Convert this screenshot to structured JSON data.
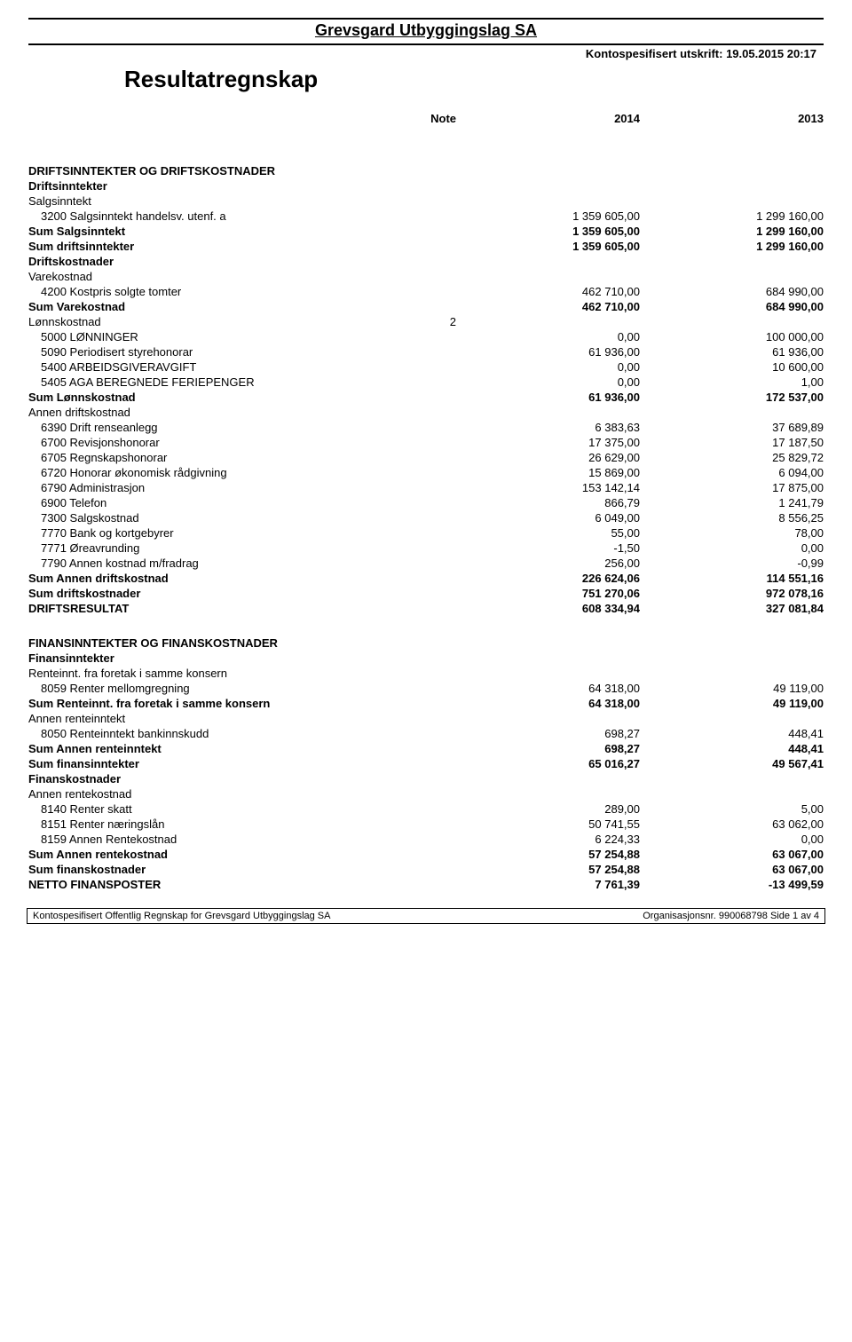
{
  "header": {
    "company": "Grevsgard Utbyggingslag SA",
    "printInfo": "Kontospesifisert utskrift: 19.05.2015 20:17",
    "reportTitle": "Resultatregnskap",
    "colNote": "Note",
    "col2014": "2014",
    "col2013": "2013"
  },
  "sections": [
    {
      "type": "big-spacer"
    },
    {
      "type": "heading",
      "label": "DRIFTSINNTEKTER OG DRIFTSKOSTNADER"
    },
    {
      "type": "subheading",
      "label": "Driftsinntekter"
    },
    {
      "type": "plain",
      "label": "Salgsinntekt"
    },
    {
      "type": "row",
      "label": "3200 Salgsinntekt handelsv. utenf. a",
      "indent": 1,
      "v2014": "1 359 605,00",
      "v2013": "1 299 160,00"
    },
    {
      "type": "bold",
      "label": "Sum Salgsinntekt",
      "v2014": "1 359 605,00",
      "v2013": "1 299 160,00"
    },
    {
      "type": "bold",
      "label": "Sum driftsinntekter",
      "v2014": "1 359 605,00",
      "v2013": "1 299 160,00"
    },
    {
      "type": "subheading",
      "label": "Driftskostnader"
    },
    {
      "type": "plain",
      "label": "Varekostnad"
    },
    {
      "type": "row",
      "label": "4200 Kostpris solgte tomter",
      "indent": 1,
      "v2014": "462 710,00",
      "v2013": "684 990,00"
    },
    {
      "type": "bold",
      "label": "Sum Varekostnad",
      "v2014": "462 710,00",
      "v2013": "684 990,00"
    },
    {
      "type": "plain",
      "label": "Lønnskostnad",
      "note": "2"
    },
    {
      "type": "row",
      "label": "5000 LØNNINGER",
      "indent": 1,
      "v2014": "0,00",
      "v2013": "100 000,00"
    },
    {
      "type": "row",
      "label": "5090 Periodisert styrehonorar",
      "indent": 1,
      "v2014": "61 936,00",
      "v2013": "61 936,00"
    },
    {
      "type": "row",
      "label": "5400 ARBEIDSGIVERAVGIFT",
      "indent": 1,
      "v2014": "0,00",
      "v2013": "10 600,00"
    },
    {
      "type": "row",
      "label": "5405 AGA BEREGNEDE FERIEPENGER",
      "indent": 1,
      "v2014": "0,00",
      "v2013": "1,00"
    },
    {
      "type": "bold",
      "label": "Sum Lønnskostnad",
      "v2014": "61 936,00",
      "v2013": "172 537,00"
    },
    {
      "type": "plain",
      "label": "Annen driftskostnad"
    },
    {
      "type": "row",
      "label": "6390 Drift renseanlegg",
      "indent": 1,
      "v2014": "6 383,63",
      "v2013": "37 689,89"
    },
    {
      "type": "row",
      "label": "6700 Revisjonshonorar",
      "indent": 1,
      "v2014": "17 375,00",
      "v2013": "17 187,50"
    },
    {
      "type": "row",
      "label": "6705 Regnskapshonorar",
      "indent": 1,
      "v2014": "26 629,00",
      "v2013": "25 829,72"
    },
    {
      "type": "row",
      "label": "6720 Honorar økonomisk rådgivning",
      "indent": 1,
      "v2014": "15 869,00",
      "v2013": "6 094,00"
    },
    {
      "type": "row",
      "label": "6790 Administrasjon",
      "indent": 1,
      "v2014": "153 142,14",
      "v2013": "17 875,00"
    },
    {
      "type": "row",
      "label": "6900 Telefon",
      "indent": 1,
      "v2014": "866,79",
      "v2013": "1 241,79"
    },
    {
      "type": "row",
      "label": "7300 Salgskostnad",
      "indent": 1,
      "v2014": "6 049,00",
      "v2013": "8 556,25"
    },
    {
      "type": "row",
      "label": "7770 Bank og kortgebyrer",
      "indent": 1,
      "v2014": "55,00",
      "v2013": "78,00"
    },
    {
      "type": "row",
      "label": "7771 Øreavrunding",
      "indent": 1,
      "v2014": "-1,50",
      "v2013": "0,00"
    },
    {
      "type": "row",
      "label": "7790 Annen kostnad m/fradrag",
      "indent": 1,
      "v2014": "256,00",
      "v2013": "-0,99"
    },
    {
      "type": "bold",
      "label": "Sum Annen driftskostnad",
      "v2014": "226 624,06",
      "v2013": "114 551,16"
    },
    {
      "type": "bold",
      "label": "Sum driftskostnader",
      "v2014": "751 270,06",
      "v2013": "972 078,16"
    },
    {
      "type": "bold",
      "label": "DRIFTSRESULTAT",
      "v2014": "608 334,94",
      "v2013": "327 081,84"
    },
    {
      "type": "spacer"
    },
    {
      "type": "heading",
      "label": "FINANSINNTEKTER OG FINANSKOSTNADER"
    },
    {
      "type": "subheading",
      "label": "Finansinntekter"
    },
    {
      "type": "plain",
      "label": "Renteinnt. fra foretak i samme konsern"
    },
    {
      "type": "row",
      "label": "8059 Renter mellomgregning",
      "indent": 1,
      "v2014": "64 318,00",
      "v2013": "49 119,00"
    },
    {
      "type": "bold",
      "label": "Sum Renteinnt. fra foretak i samme konsern",
      "v2014": "64 318,00",
      "v2013": "49 119,00"
    },
    {
      "type": "plain",
      "label": "Annen renteinntekt"
    },
    {
      "type": "row",
      "label": "8050 Renteinntekt bankinnskudd",
      "indent": 1,
      "v2014": "698,27",
      "v2013": "448,41"
    },
    {
      "type": "bold",
      "label": "Sum Annen renteinntekt",
      "v2014": "698,27",
      "v2013": "448,41"
    },
    {
      "type": "bold",
      "label": "Sum finansinntekter",
      "v2014": "65 016,27",
      "v2013": "49 567,41"
    },
    {
      "type": "subheading",
      "label": "Finanskostnader"
    },
    {
      "type": "plain",
      "label": "Annen rentekostnad"
    },
    {
      "type": "row",
      "label": "8140 Renter skatt",
      "indent": 1,
      "v2014": "289,00",
      "v2013": "5,00"
    },
    {
      "type": "row",
      "label": "8151 Renter næringslån",
      "indent": 1,
      "v2014": "50 741,55",
      "v2013": "63 062,00"
    },
    {
      "type": "row",
      "label": "8159 Annen Rentekostnad",
      "indent": 1,
      "v2014": "6 224,33",
      "v2013": "0,00"
    },
    {
      "type": "bold",
      "label": "Sum Annen rentekostnad",
      "v2014": "57 254,88",
      "v2013": "63 067,00"
    },
    {
      "type": "bold",
      "label": "Sum finanskostnader",
      "v2014": "57 254,88",
      "v2013": "63 067,00"
    },
    {
      "type": "bold",
      "label": "NETTO FINANSPOSTER",
      "v2014": "7 761,39",
      "v2013": "-13 499,59"
    }
  ],
  "footer": {
    "left": "Kontospesifisert Offentlig Regnskap for Grevsgard Utbyggingslag SA",
    "right": "Organisasjonsnr. 990068798 Side 1 av 4"
  }
}
